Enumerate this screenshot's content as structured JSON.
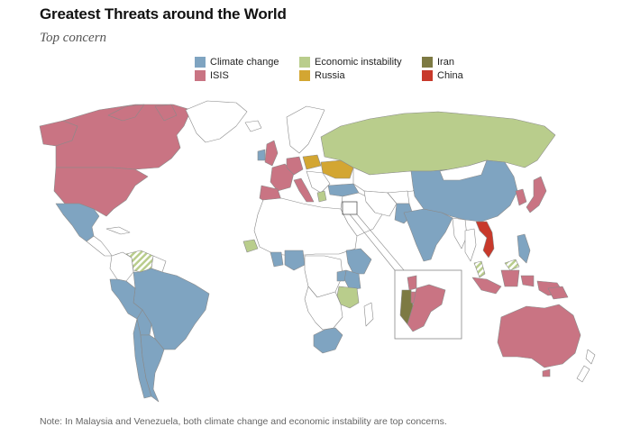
{
  "title": "Greatest Threats around the World",
  "subtitle": "Top concern",
  "legend": [
    {
      "label": "Climate change",
      "color": "#7fa4c1"
    },
    {
      "label": "ISIS",
      "color": "#c97483"
    },
    {
      "label": "Economic instability",
      "color": "#b9cd8c"
    },
    {
      "label": "Russia",
      "color": "#d3a632"
    },
    {
      "label": "Iran",
      "color": "#7d7a43"
    },
    {
      "label": "China",
      "color": "#c8392b"
    }
  ],
  "colors": {
    "climate": "#7fa4c1",
    "isis": "#c97483",
    "economic": "#b9cd8c",
    "russia": "#d3a632",
    "iran": "#7d7a43",
    "china": "#c8392b",
    "none": "#ffffff",
    "border": "#8a8a8a"
  },
  "note": "Note: In Malaysia and Venezuela, both climate change and economic instability are top concerns."
}
